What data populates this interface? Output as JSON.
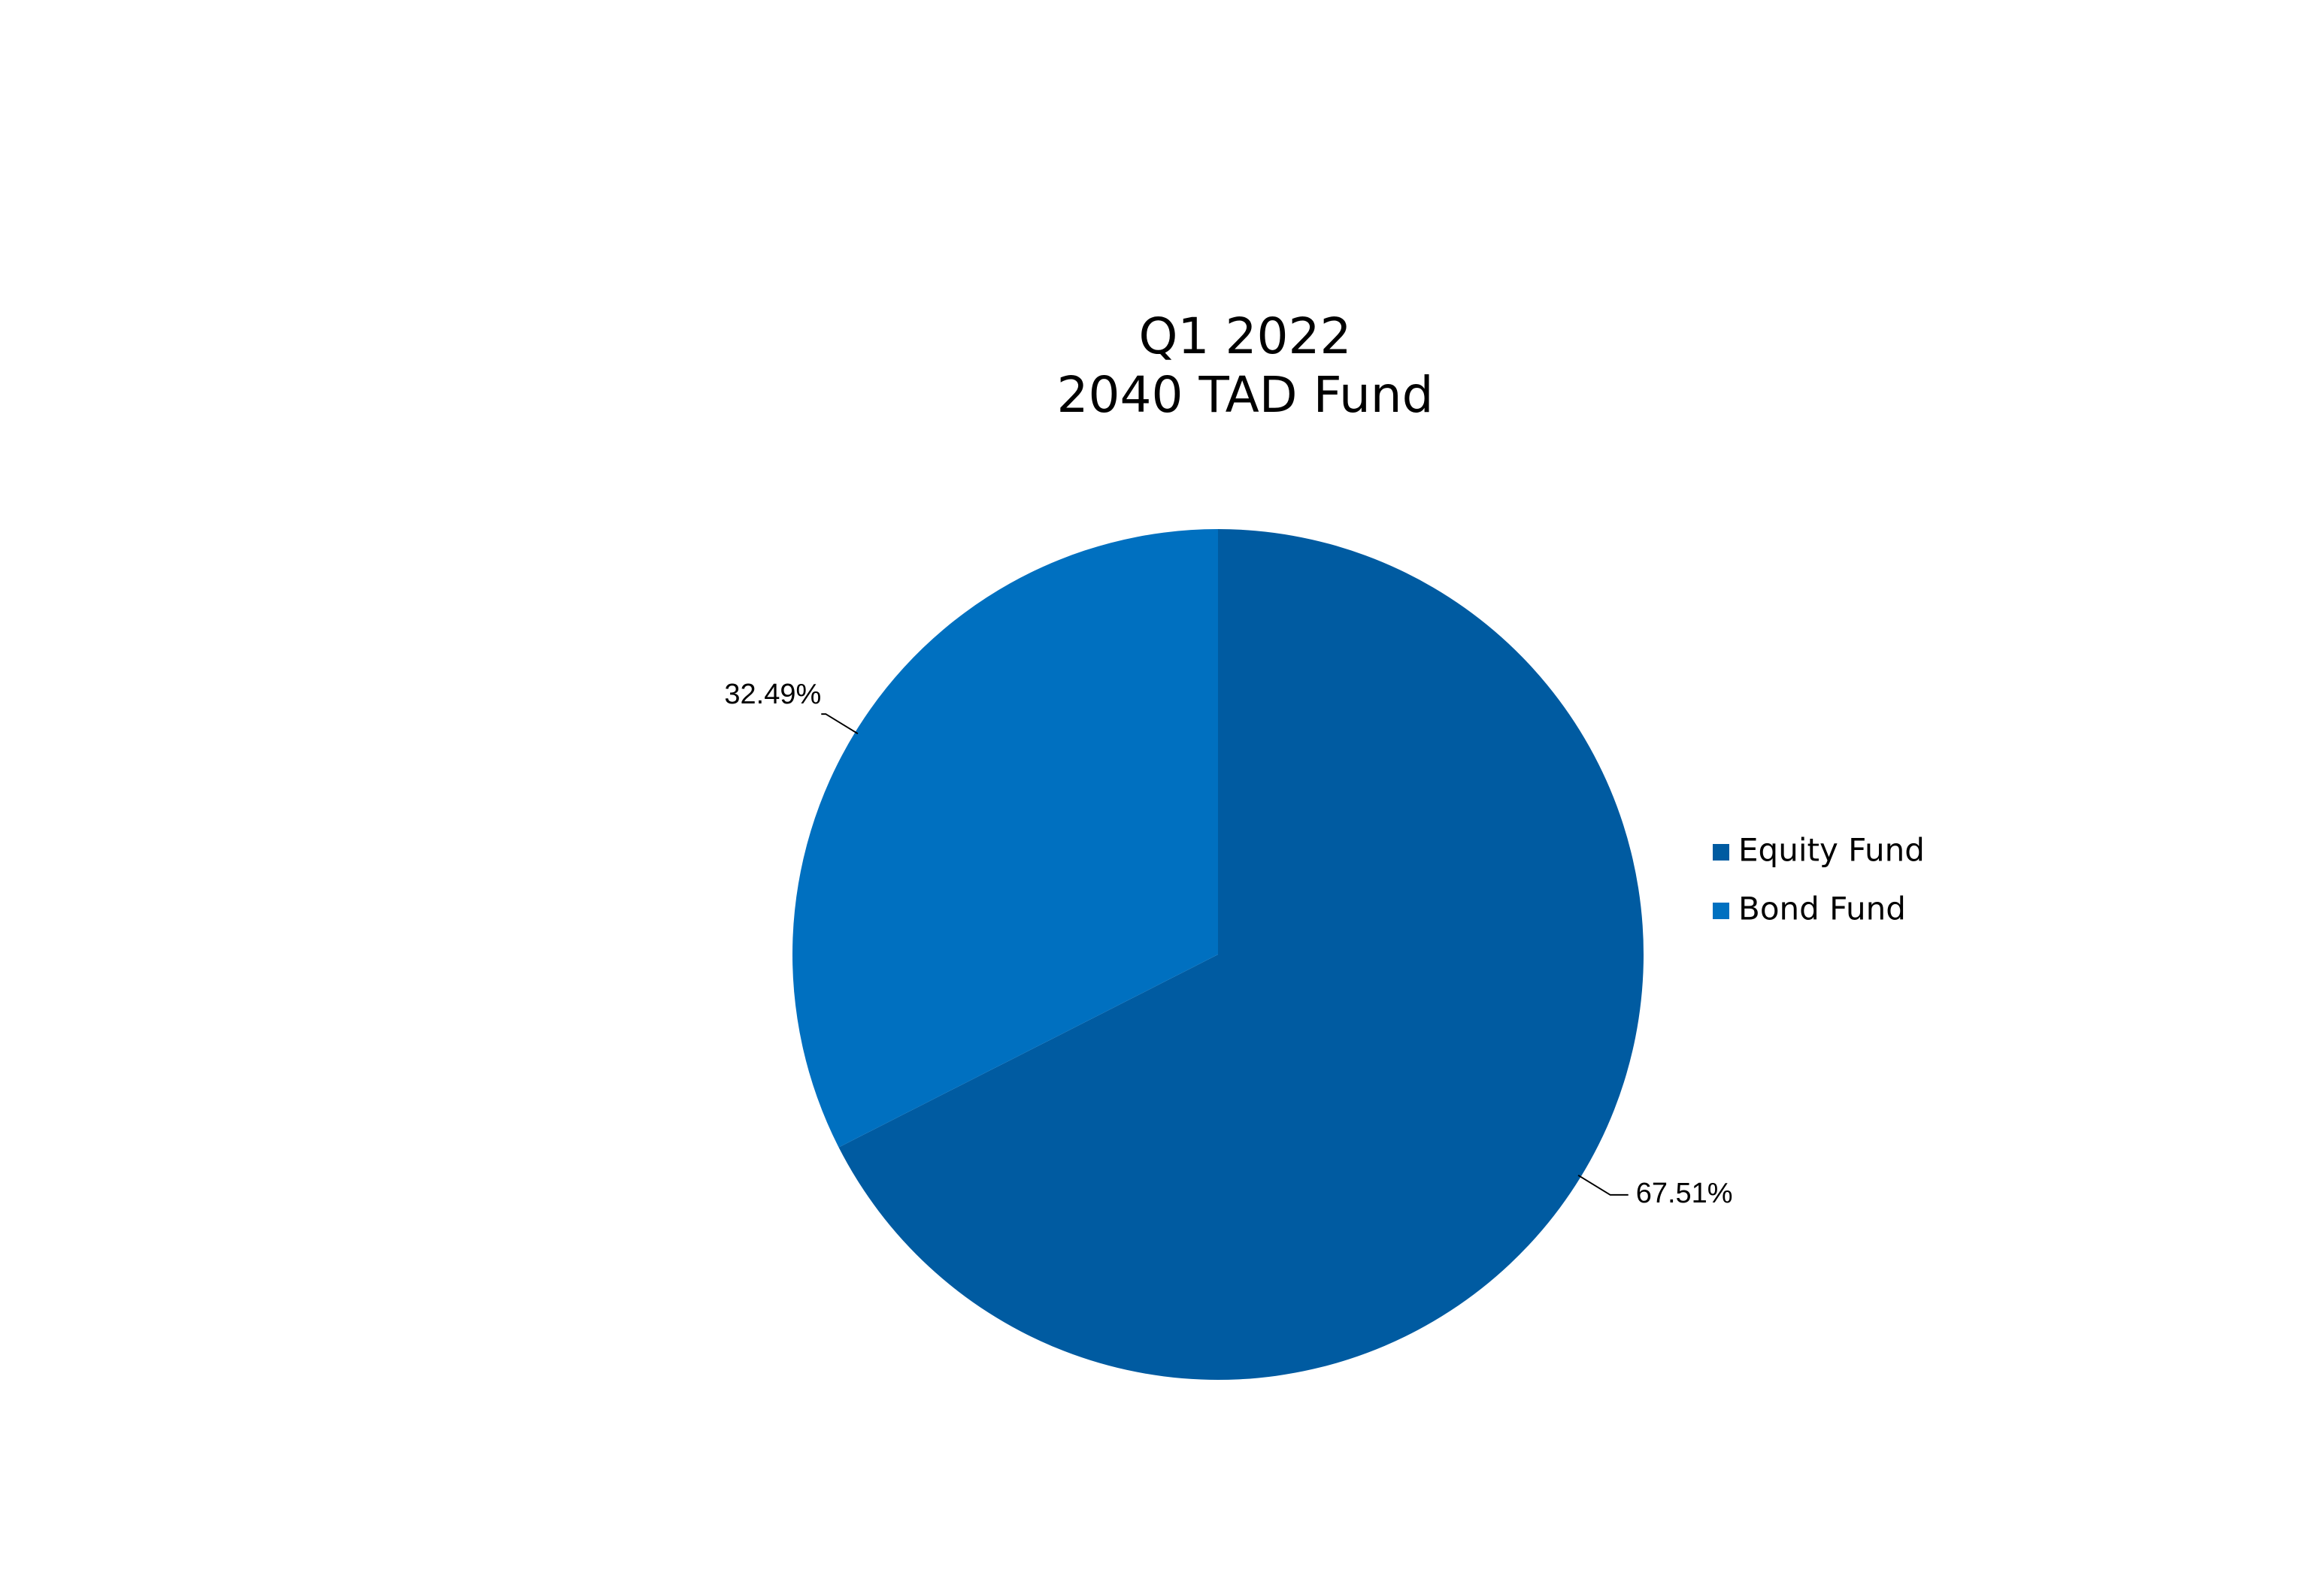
{
  "chart_data": {
    "type": "pie",
    "title": [
      "Q1 2022",
      "2040 TAD Fund"
    ],
    "categories": [
      "Equity Fund",
      "Bond Fund"
    ],
    "values": [
      67.51,
      32.49
    ],
    "value_labels": [
      "67.51%",
      "32.49%"
    ],
    "colors": [
      "#005ba1",
      "#0070c0"
    ],
    "legend": "right"
  }
}
